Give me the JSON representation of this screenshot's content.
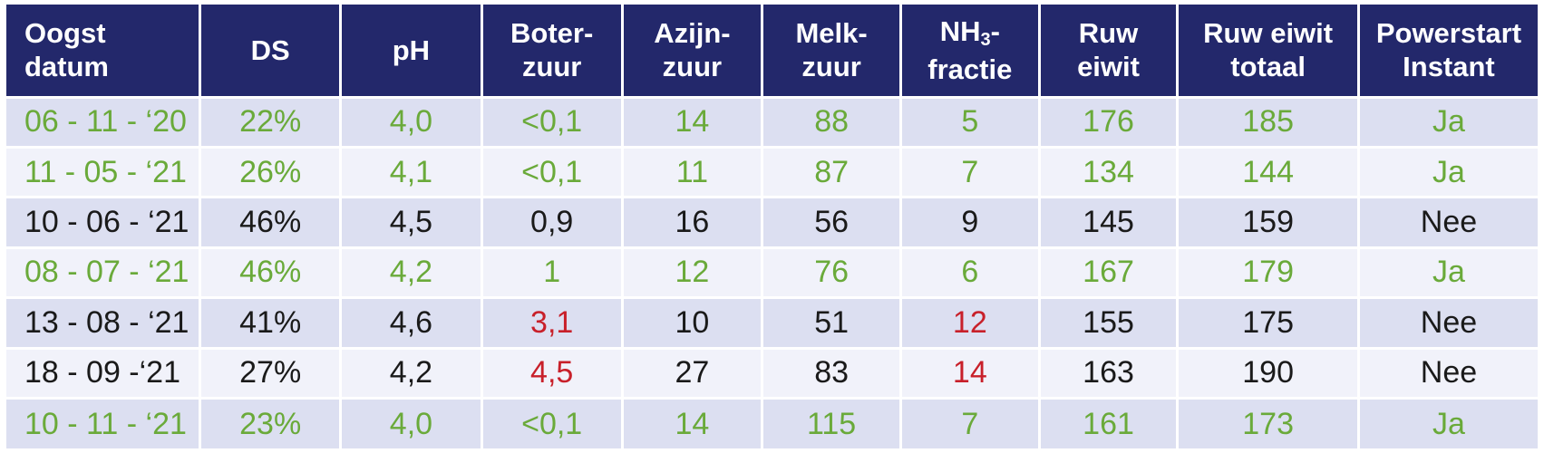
{
  "chart_data": {
    "type": "table",
    "columns": [
      {
        "key": "datum",
        "label_lines": [
          "Oogst",
          "datum"
        ]
      },
      {
        "key": "ds",
        "label_lines": [
          "DS"
        ]
      },
      {
        "key": "ph",
        "label_lines": [
          "pH"
        ]
      },
      {
        "key": "boterzuur",
        "label_lines": [
          "Boter-",
          "zuur"
        ]
      },
      {
        "key": "azijnzuur",
        "label_lines": [
          "Azijn-",
          "zuur"
        ]
      },
      {
        "key": "melkzuur",
        "label_lines": [
          "Melk-",
          "zuur"
        ]
      },
      {
        "key": "nh3",
        "label_lines": [
          "NH",
          "fractie"
        ],
        "label_sub": "3",
        "label_suffix": "-"
      },
      {
        "key": "ruw_eiwit",
        "label_lines": [
          "Ruw",
          "eiwit"
        ]
      },
      {
        "key": "ruw_eiwit_totaal",
        "label_lines": [
          "Ruw eiwit",
          "totaal"
        ]
      },
      {
        "key": "powerstart",
        "label_lines": [
          "Powerstart",
          "Instant"
        ]
      }
    ],
    "rows": [
      {
        "datum": "06 - 11 - ‘20",
        "ds": "22%",
        "ph": "4,0",
        "boterzuur": "<0,1",
        "azijnzuur": "14",
        "melkzuur": "88",
        "nh3": "5",
        "ruw_eiwit": "176",
        "ruw_eiwit_totaal": "185",
        "powerstart": "Ja"
      },
      {
        "datum": "11 - 05 - ‘21",
        "ds": "26%",
        "ph": "4,1",
        "boterzuur": "<0,1",
        "azijnzuur": "11",
        "melkzuur": "87",
        "nh3": "7",
        "ruw_eiwit": "134",
        "ruw_eiwit_totaal": "144",
        "powerstart": "Ja"
      },
      {
        "datum": "10 - 06 - ‘21",
        "ds": "46%",
        "ph": "4,5",
        "boterzuur": "0,9",
        "azijnzuur": "16",
        "melkzuur": "56",
        "nh3": "9",
        "ruw_eiwit": "145",
        "ruw_eiwit_totaal": "159",
        "powerstart": "Nee"
      },
      {
        "datum": "08 - 07 - ‘21",
        "ds": "46%",
        "ph": "4,2",
        "boterzuur": "1",
        "azijnzuur": "12",
        "melkzuur": "76",
        "nh3": "6",
        "ruw_eiwit": "167",
        "ruw_eiwit_totaal": "179",
        "powerstart": "Ja"
      },
      {
        "datum": "13 - 08 - ‘21",
        "ds": "41%",
        "ph": "4,6",
        "boterzuur": "3,1",
        "azijnzuur": "10",
        "melkzuur": "51",
        "nh3": "12",
        "ruw_eiwit": "155",
        "ruw_eiwit_totaal": "175",
        "powerstart": "Nee"
      },
      {
        "datum": "18 - 09 -‘21",
        "ds": "27%",
        "ph": "4,2",
        "boterzuur": "4,5",
        "azijnzuur": "27",
        "melkzuur": "83",
        "nh3": "14",
        "ruw_eiwit": "163",
        "ruw_eiwit_totaal": "190",
        "powerstart": "Nee"
      },
      {
        "datum": "10 - 11 - ‘21",
        "ds": "23%",
        "ph": "4,0",
        "boterzuur": "<0,1",
        "azijnzuur": "14",
        "melkzuur": "115",
        "nh3": "7",
        "ruw_eiwit": "161",
        "ruw_eiwit_totaal": "173",
        "powerstart": "Ja"
      }
    ],
    "row_color": [
      "green",
      "green",
      "black",
      "green",
      "black",
      "black",
      "green"
    ],
    "highlight_cells": [
      {
        "row": 4,
        "key": "boterzuur",
        "color": "red"
      },
      {
        "row": 4,
        "key": "nh3",
        "color": "red"
      },
      {
        "row": 5,
        "key": "boterzuur",
        "color": "red"
      },
      {
        "row": 5,
        "key": "nh3",
        "color": "red"
      }
    ],
    "colors": {
      "header_bg": "#23286b",
      "header_text": "#ffffff",
      "row_odd_bg": "#dcdff1",
      "row_even_bg": "#f1f2fa",
      "green": "#6aaa3a",
      "red": "#c8202a",
      "black": "#1a1a1a"
    }
  }
}
